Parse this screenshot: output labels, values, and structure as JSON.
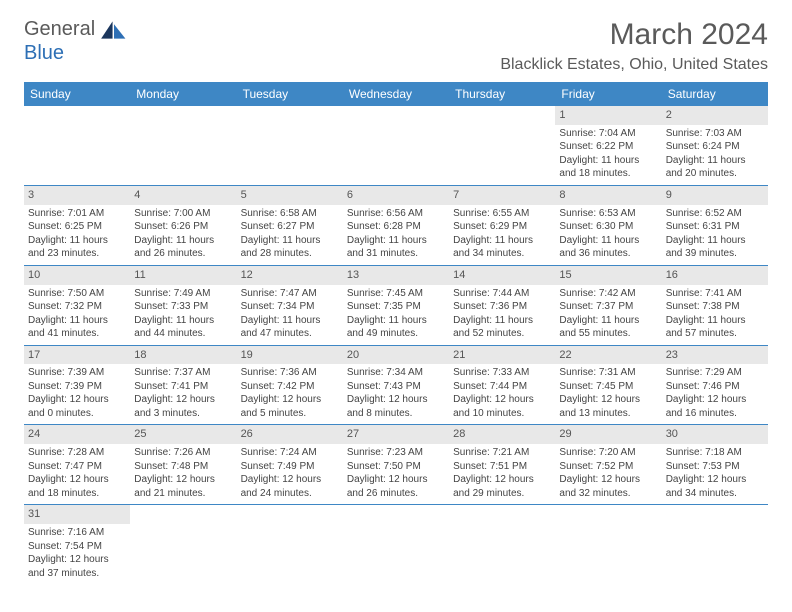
{
  "brand": {
    "name1": "General",
    "name2": "Blue"
  },
  "title": "March 2024",
  "location": "Blacklick Estates, Ohio, United States",
  "days": [
    "Sunday",
    "Monday",
    "Tuesday",
    "Wednesday",
    "Thursday",
    "Friday",
    "Saturday"
  ],
  "colors": {
    "headerBg": "#3e87c5",
    "shadeBg": "#e8e8e8",
    "text": "#444"
  },
  "weeks": [
    [
      null,
      null,
      null,
      null,
      null,
      {
        "n": "1",
        "sr": "7:04 AM",
        "ss": "6:22 PM",
        "dl": "11 hours and 18 minutes."
      },
      {
        "n": "2",
        "sr": "7:03 AM",
        "ss": "6:24 PM",
        "dl": "11 hours and 20 minutes."
      }
    ],
    [
      {
        "n": "3",
        "sr": "7:01 AM",
        "ss": "6:25 PM",
        "dl": "11 hours and 23 minutes."
      },
      {
        "n": "4",
        "sr": "7:00 AM",
        "ss": "6:26 PM",
        "dl": "11 hours and 26 minutes."
      },
      {
        "n": "5",
        "sr": "6:58 AM",
        "ss": "6:27 PM",
        "dl": "11 hours and 28 minutes."
      },
      {
        "n": "6",
        "sr": "6:56 AM",
        "ss": "6:28 PM",
        "dl": "11 hours and 31 minutes."
      },
      {
        "n": "7",
        "sr": "6:55 AM",
        "ss": "6:29 PM",
        "dl": "11 hours and 34 minutes."
      },
      {
        "n": "8",
        "sr": "6:53 AM",
        "ss": "6:30 PM",
        "dl": "11 hours and 36 minutes."
      },
      {
        "n": "9",
        "sr": "6:52 AM",
        "ss": "6:31 PM",
        "dl": "11 hours and 39 minutes."
      }
    ],
    [
      {
        "n": "10",
        "sr": "7:50 AM",
        "ss": "7:32 PM",
        "dl": "11 hours and 41 minutes."
      },
      {
        "n": "11",
        "sr": "7:49 AM",
        "ss": "7:33 PM",
        "dl": "11 hours and 44 minutes."
      },
      {
        "n": "12",
        "sr": "7:47 AM",
        "ss": "7:34 PM",
        "dl": "11 hours and 47 minutes."
      },
      {
        "n": "13",
        "sr": "7:45 AM",
        "ss": "7:35 PM",
        "dl": "11 hours and 49 minutes."
      },
      {
        "n": "14",
        "sr": "7:44 AM",
        "ss": "7:36 PM",
        "dl": "11 hours and 52 minutes."
      },
      {
        "n": "15",
        "sr": "7:42 AM",
        "ss": "7:37 PM",
        "dl": "11 hours and 55 minutes."
      },
      {
        "n": "16",
        "sr": "7:41 AM",
        "ss": "7:38 PM",
        "dl": "11 hours and 57 minutes."
      }
    ],
    [
      {
        "n": "17",
        "sr": "7:39 AM",
        "ss": "7:39 PM",
        "dl": "12 hours and 0 minutes."
      },
      {
        "n": "18",
        "sr": "7:37 AM",
        "ss": "7:41 PM",
        "dl": "12 hours and 3 minutes."
      },
      {
        "n": "19",
        "sr": "7:36 AM",
        "ss": "7:42 PM",
        "dl": "12 hours and 5 minutes."
      },
      {
        "n": "20",
        "sr": "7:34 AM",
        "ss": "7:43 PM",
        "dl": "12 hours and 8 minutes."
      },
      {
        "n": "21",
        "sr": "7:33 AM",
        "ss": "7:44 PM",
        "dl": "12 hours and 10 minutes."
      },
      {
        "n": "22",
        "sr": "7:31 AM",
        "ss": "7:45 PM",
        "dl": "12 hours and 13 minutes."
      },
      {
        "n": "23",
        "sr": "7:29 AM",
        "ss": "7:46 PM",
        "dl": "12 hours and 16 minutes."
      }
    ],
    [
      {
        "n": "24",
        "sr": "7:28 AM",
        "ss": "7:47 PM",
        "dl": "12 hours and 18 minutes."
      },
      {
        "n": "25",
        "sr": "7:26 AM",
        "ss": "7:48 PM",
        "dl": "12 hours and 21 minutes."
      },
      {
        "n": "26",
        "sr": "7:24 AM",
        "ss": "7:49 PM",
        "dl": "12 hours and 24 minutes."
      },
      {
        "n": "27",
        "sr": "7:23 AM",
        "ss": "7:50 PM",
        "dl": "12 hours and 26 minutes."
      },
      {
        "n": "28",
        "sr": "7:21 AM",
        "ss": "7:51 PM",
        "dl": "12 hours and 29 minutes."
      },
      {
        "n": "29",
        "sr": "7:20 AM",
        "ss": "7:52 PM",
        "dl": "12 hours and 32 minutes."
      },
      {
        "n": "30",
        "sr": "7:18 AM",
        "ss": "7:53 PM",
        "dl": "12 hours and 34 minutes."
      }
    ],
    [
      {
        "n": "31",
        "sr": "7:16 AM",
        "ss": "7:54 PM",
        "dl": "12 hours and 37 minutes."
      },
      null,
      null,
      null,
      null,
      null,
      null
    ]
  ],
  "labels": {
    "sunrise": "Sunrise:",
    "sunset": "Sunset:",
    "daylight": "Daylight:"
  }
}
